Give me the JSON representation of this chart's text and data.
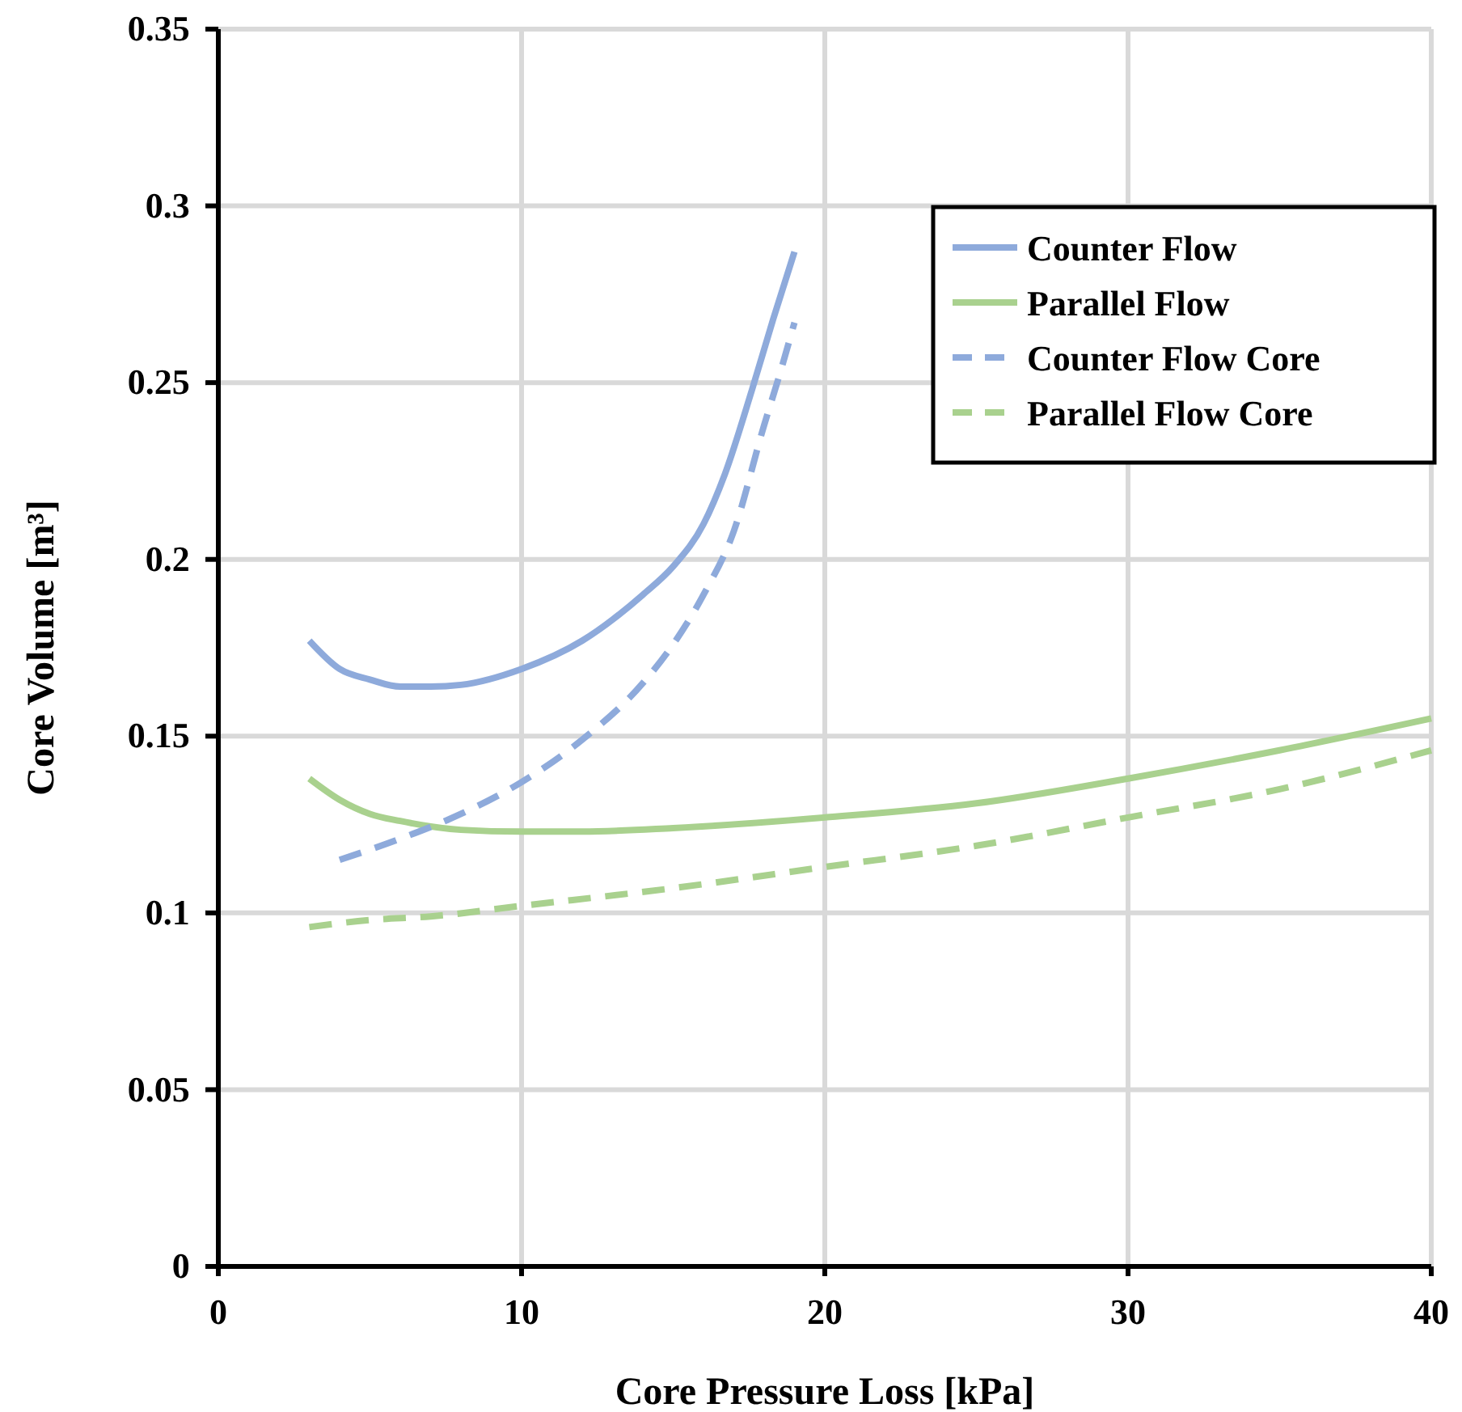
{
  "chart_data": {
    "type": "line",
    "xlabel": "Core Pressure Loss [kPa]",
    "ylabel": "Core Volume [m³]",
    "xlim": [
      0,
      40
    ],
    "xticks": [
      0,
      10,
      20,
      30,
      40
    ],
    "ylim": [
      0,
      0.35
    ],
    "yticks": [
      0,
      0.05,
      0.1,
      0.15,
      0.2,
      0.25,
      0.3,
      0.35
    ],
    "grid": true,
    "legend": "top right",
    "marker": "none",
    "series": [
      {
        "name": "Counter Flow",
        "color": "#8eaadb",
        "line_style": "solid",
        "x": [
          3,
          4,
          5,
          6,
          7,
          8,
          10,
          12,
          14,
          15,
          16,
          16.7,
          17.6,
          18.3,
          19
        ],
        "values": [
          0.177,
          0.169,
          0.166,
          0.164,
          0.164,
          0.1645,
          0.169,
          0.177,
          0.19,
          0.198,
          0.21,
          0.224,
          0.248,
          0.268,
          0.287
        ]
      },
      {
        "name": "Parallel Flow",
        "color": "#a9d18e",
        "line_style": "solid",
        "x": [
          3,
          4,
          5,
          6,
          8,
          10,
          12,
          15,
          20,
          25,
          30,
          35,
          40
        ],
        "values": [
          0.138,
          0.132,
          0.128,
          0.126,
          0.1235,
          0.123,
          0.123,
          0.124,
          0.127,
          0.131,
          0.138,
          0.146,
          0.155
        ]
      },
      {
        "name": "Counter Flow Core",
        "color": "#8eaadb",
        "line_style": "dashed",
        "x": [
          4,
          6,
          8,
          10,
          12,
          14,
          15,
          16,
          17,
          18,
          18.5,
          19
        ],
        "values": [
          0.115,
          0.121,
          0.128,
          0.137,
          0.149,
          0.165,
          0.176,
          0.19,
          0.208,
          0.238,
          0.252,
          0.267
        ]
      },
      {
        "name": "Parallel Flow Core",
        "color": "#a9d18e",
        "line_style": "dashed",
        "x": [
          3,
          5,
          7,
          10,
          15,
          20,
          25,
          30,
          35,
          40
        ],
        "values": [
          0.096,
          0.098,
          0.099,
          0.102,
          0.107,
          0.113,
          0.119,
          0.127,
          0.135,
          0.146
        ]
      }
    ]
  }
}
